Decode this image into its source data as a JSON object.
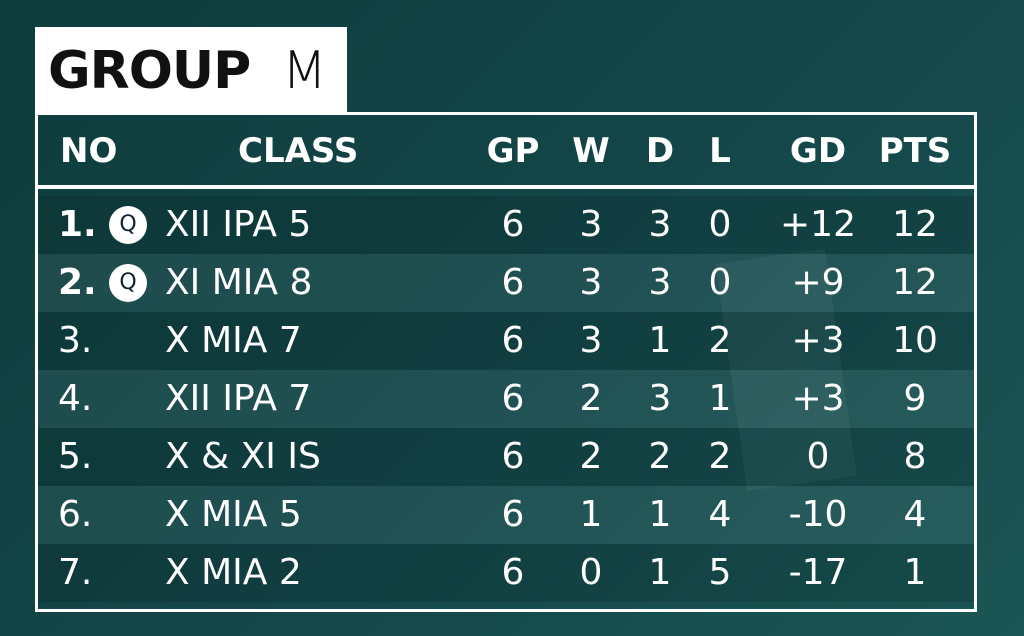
{
  "title": {
    "bold": "GROUP",
    "light": "M"
  },
  "columns": [
    "NO",
    "CLASS",
    "GP",
    "W",
    "D",
    "L",
    "GD",
    "PTS"
  ],
  "rows": [
    {
      "rank": "1.",
      "badge": "Q",
      "cells": [
        "XII IPA 5",
        6,
        3,
        3,
        0,
        "+12",
        12
      ]
    },
    {
      "rank": "2.",
      "badge": "Q",
      "cells": [
        "XI MIA 8",
        6,
        3,
        3,
        0,
        "+9",
        12
      ]
    },
    {
      "rank": "3.",
      "cells": [
        "X MIA 7",
        6,
        3,
        1,
        2,
        "+3",
        10
      ]
    },
    {
      "rank": "4.",
      "cells": [
        "XII IPA 7",
        6,
        2,
        3,
        1,
        "+3",
        9
      ]
    },
    {
      "rank": "5.",
      "cells": [
        "X & XI IS",
        6,
        2,
        2,
        2,
        0,
        8
      ]
    },
    {
      "rank": "6.",
      "cells": [
        "X MIA 5",
        6,
        1,
        1,
        4,
        -10,
        4
      ]
    },
    {
      "rank": "7.",
      "cells": [
        "X MIA 2",
        6,
        0,
        1,
        5,
        -17,
        1
      ]
    }
  ]
}
